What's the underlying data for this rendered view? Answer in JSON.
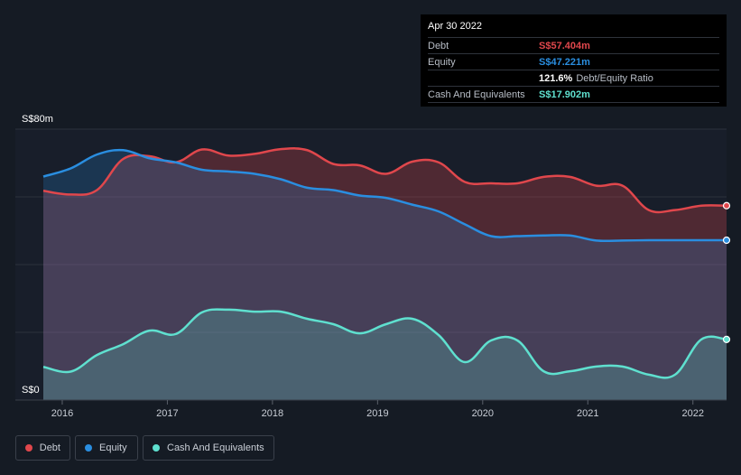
{
  "tooltip": {
    "date": "Apr 30 2022",
    "debt_label": "Debt",
    "debt_value": "S$57.404m",
    "equity_label": "Equity",
    "equity_value": "S$47.221m",
    "ratio_value": "121.6%",
    "ratio_label": "Debt/Equity Ratio",
    "cash_label": "Cash And Equivalents",
    "cash_value": "S$17.902m"
  },
  "legend": {
    "debt": "Debt",
    "equity": "Equity",
    "cash": "Cash And Equivalents"
  },
  "colors": {
    "debt": "#e0474c",
    "equity": "#2a8ee0",
    "cash": "#5fe0cf",
    "background": "#151b24"
  },
  "chart_data": {
    "type": "area",
    "title": "",
    "xlabel": "",
    "ylabel": "",
    "ylim": [
      0,
      80
    ],
    "xlim": [
      2015.82,
      2022.32
    ],
    "y_tick_labels": [
      "S$0",
      "S$80m"
    ],
    "x_tick_labels": [
      "2016",
      "2017",
      "2018",
      "2019",
      "2020",
      "2021",
      "2022"
    ],
    "x_ticks": [
      2016,
      2017,
      2018,
      2019,
      2020,
      2021,
      2022
    ],
    "series": [
      {
        "name": "Debt",
        "x": [
          2015.82,
          2016.08,
          2016.33,
          2016.58,
          2016.83,
          2017.08,
          2017.33,
          2017.58,
          2017.83,
          2018.08,
          2018.33,
          2018.58,
          2018.83,
          2019.08,
          2019.33,
          2019.58,
          2019.83,
          2020.08,
          2020.33,
          2020.58,
          2020.83,
          2021.08,
          2021.33,
          2021.58,
          2021.83,
          2022.08,
          2022.32
        ],
        "values": [
          61.8,
          60.7,
          62.0,
          71.2,
          72.0,
          70.2,
          74.0,
          72.2,
          72.7,
          74.1,
          73.8,
          69.7,
          69.3,
          66.8,
          70.4,
          70.2,
          64.4,
          64.0,
          64.0,
          65.9,
          65.9,
          63.3,
          63.3,
          56.1,
          56.1,
          57.4,
          57.4
        ]
      },
      {
        "name": "Equity",
        "x": [
          2015.82,
          2016.08,
          2016.33,
          2016.58,
          2016.83,
          2017.08,
          2017.33,
          2017.58,
          2017.83,
          2018.08,
          2018.33,
          2018.58,
          2018.83,
          2019.08,
          2019.33,
          2019.58,
          2019.83,
          2020.08,
          2020.33,
          2020.58,
          2020.83,
          2021.08,
          2021.33,
          2021.58,
          2021.83,
          2022.08,
          2022.32
        ],
        "values": [
          66.0,
          68.4,
          72.5,
          73.8,
          71.4,
          70.2,
          68.0,
          67.5,
          66.8,
          65.2,
          62.7,
          62.0,
          60.4,
          59.7,
          57.7,
          55.7,
          51.9,
          48.4,
          48.4,
          48.6,
          48.6,
          47.1,
          47.1,
          47.2,
          47.2,
          47.2,
          47.2
        ]
      },
      {
        "name": "Cash And Equivalents",
        "x": [
          2015.82,
          2016.08,
          2016.33,
          2016.58,
          2016.83,
          2017.08,
          2017.33,
          2017.58,
          2017.83,
          2018.08,
          2018.33,
          2018.58,
          2018.83,
          2019.08,
          2019.33,
          2019.58,
          2019.83,
          2020.08,
          2020.33,
          2020.58,
          2020.83,
          2021.08,
          2021.33,
          2021.58,
          2021.83,
          2022.08,
          2022.32
        ],
        "values": [
          9.8,
          8.4,
          13.3,
          16.5,
          20.5,
          19.5,
          25.9,
          26.7,
          26.1,
          26.1,
          24.0,
          22.4,
          19.7,
          22.4,
          24.0,
          19.2,
          11.2,
          17.6,
          17.6,
          8.5,
          8.5,
          9.9,
          9.9,
          7.5,
          7.5,
          17.9,
          17.9
        ]
      }
    ]
  }
}
